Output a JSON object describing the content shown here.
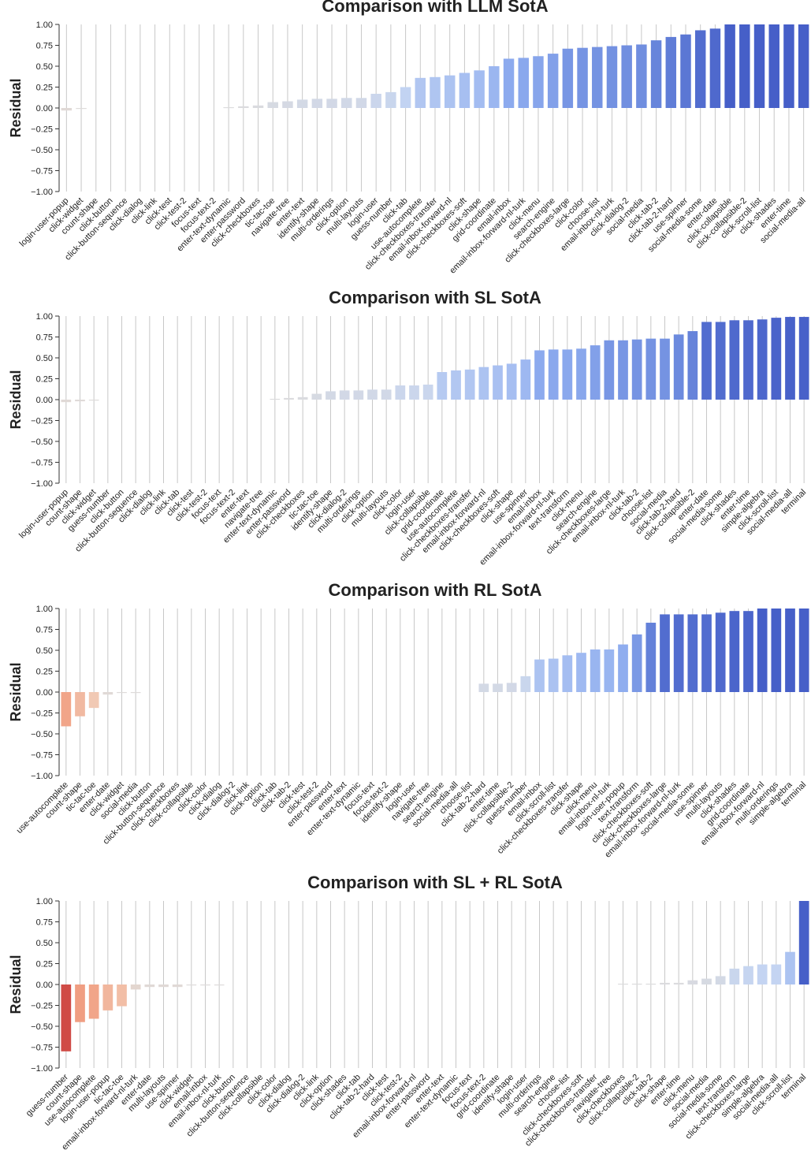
{
  "chart_data": [
    {
      "type": "bar",
      "title": "Comparison with LLM SotA",
      "xlabel": "",
      "ylabel": "Residual",
      "ylim": [
        -1.0,
        1.0
      ],
      "yticks": [
        "1.00",
        "0.75",
        "0.50",
        "0.25",
        "0.00",
        "−0.25",
        "−0.50",
        "−0.75",
        "−1.00"
      ],
      "grid": "vertical",
      "palette": "coolwarm_r",
      "categories": [
        "login-user-popup",
        "click-widget",
        "count-shape",
        "click-button",
        "click-button-sequence",
        "click-dialog",
        "click-link",
        "click-test",
        "click-test-2",
        "focus-text",
        "focus-text-2",
        "enter-text-dynamic",
        "enter-password",
        "click-checkboxes",
        "tic-tac-toe",
        "navigate-tree",
        "enter-text",
        "identify-shape",
        "multi-orderings",
        "click-option",
        "multi-layouts",
        "login-user",
        "guess-number",
        "click-tab",
        "use-autocomplete",
        "click-checkboxes-transfer",
        "email-inbox-forward-nl",
        "click-checkboxes-soft",
        "click-shape",
        "grid-coordinate",
        "email-inbox",
        "email-inbox-forward-nl-turk",
        "click-menu",
        "search-engine",
        "click-checkboxes-large",
        "click-color",
        "choose-list",
        "email-inbox-nl-turk",
        "click-dialog-2",
        "social-media",
        "click-tab-2",
        "click-tab-2-hard",
        "use-spinner",
        "social-media-some",
        "enter-date",
        "click-collapsible",
        "click-collapsible-2",
        "click-scroll-list",
        "click-shades",
        "enter-time",
        "social-media-all"
      ],
      "values": [
        -0.03,
        -0.01,
        0,
        0,
        0,
        0,
        0,
        0,
        0,
        0,
        0,
        0.01,
        0.02,
        0.03,
        0.07,
        0.08,
        0.1,
        0.11,
        0.11,
        0.12,
        0.12,
        0.17,
        0.19,
        0.25,
        0.36,
        0.37,
        0.39,
        0.42,
        0.45,
        0.5,
        0.59,
        0.6,
        0.62,
        0.65,
        0.71,
        0.72,
        0.73,
        0.74,
        0.75,
        0.76,
        0.81,
        0.85,
        0.88,
        0.93,
        0.95,
        1.0,
        1.0,
        1.0,
        1.0,
        1.0,
        1.0
      ]
    },
    {
      "type": "bar",
      "title": "Comparison with SL SotA",
      "xlabel": "",
      "ylabel": "Residual",
      "ylim": [
        -1.0,
        1.0
      ],
      "yticks": [
        "1.00",
        "0.75",
        "0.50",
        "0.25",
        "0.00",
        "−0.25",
        "−0.50",
        "−0.75",
        "−1.00"
      ],
      "grid": "vertical",
      "palette": "coolwarm_r",
      "categories": [
        "login-user-popup",
        "count-shape",
        "click-widget",
        "guess-number",
        "click-button",
        "click-button-sequence",
        "click-dialog",
        "click-link",
        "click-tab",
        "click-test",
        "click-test-2",
        "focus-text",
        "focus-text-2",
        "enter-text",
        "navigate-tree",
        "enter-text-dynamic",
        "enter-password",
        "click-checkboxes",
        "tic-tac-toe",
        "identify-shape",
        "click-dialog-2",
        "multi-orderings",
        "click-option",
        "multi-layouts",
        "click-color",
        "login-user",
        "click-collapsible",
        "grid-coordinate",
        "use-autocomplete",
        "click-checkboxes-transfer",
        "email-inbox-forward-nl",
        "click-checkboxes-soft",
        "click-shape",
        "use-spinner",
        "email-inbox",
        "email-inbox-forward-nl-turk",
        "text-transform",
        "click-menu",
        "search-engine",
        "click-checkboxes-large",
        "email-inbox-nl-turk",
        "click-tab-2",
        "choose-list",
        "social-media",
        "click-tab-2-hard",
        "click-collapsible-2",
        "enter-date",
        "social-media-some",
        "click-shades",
        "enter-time",
        "simple-algebra",
        "click-scroll-list",
        "social-media-all",
        "terminal"
      ],
      "values": [
        -0.03,
        -0.02,
        -0.01,
        0,
        0,
        0,
        0,
        0,
        0,
        0,
        0,
        0,
        0,
        0,
        0,
        0.01,
        0.02,
        0.03,
        0.07,
        0.1,
        0.11,
        0.11,
        0.12,
        0.12,
        0.17,
        0.17,
        0.18,
        0.33,
        0.35,
        0.36,
        0.39,
        0.41,
        0.43,
        0.48,
        0.59,
        0.6,
        0.6,
        0.61,
        0.65,
        0.71,
        0.71,
        0.72,
        0.73,
        0.73,
        0.78,
        0.82,
        0.93,
        0.93,
        0.95,
        0.95,
        0.96,
        0.98,
        0.99,
        0.99
      ]
    },
    {
      "type": "bar",
      "title": "Comparison with RL SotA",
      "xlabel": "",
      "ylabel": "Residual",
      "ylim": [
        -1.0,
        1.0
      ],
      "yticks": [
        "1.00",
        "0.75",
        "0.50",
        "0.25",
        "0.00",
        "−0.25",
        "−0.50",
        "−0.75",
        "−1.00"
      ],
      "grid": "vertical",
      "palette": "coolwarm_r",
      "categories": [
        "use-autocomplete",
        "count-shape",
        "tic-tac-toe",
        "enter-date",
        "click-widget",
        "social-media",
        "click-button",
        "click-button-sequence",
        "click-checkboxes",
        "click-collapsible",
        "click-color",
        "click-dialog",
        "click-dialog-2",
        "click-link",
        "click-option",
        "click-tab",
        "click-tab-2",
        "click-test",
        "click-test-2",
        "enter-password",
        "enter-text",
        "enter-text-dynamic",
        "focus-text",
        "focus-text-2",
        "identify-shape",
        "login-user",
        "navigate-tree",
        "search-engine",
        "social-media-all",
        "choose-list",
        "click-tab-2-hard",
        "enter-time",
        "click-collapsible-2",
        "guess-number",
        "email-inbox",
        "click-scroll-list",
        "click-checkboxes-transfer",
        "click-shape",
        "click-menu",
        "email-inbox-nl-turk",
        "login-user-popup",
        "text-transform",
        "click-checkboxes-soft",
        "click-checkboxes-large",
        "email-inbox-forward-nl-turk",
        "social-media-some",
        "use-spinner",
        "multi-layouts",
        "click-shades",
        "grid-coordinate",
        "email-inbox-forward-nl",
        "multi-orderings",
        "simple-algebra",
        "terminal"
      ],
      "values": [
        -0.41,
        -0.29,
        -0.19,
        -0.03,
        -0.01,
        -0.01,
        0,
        0,
        0,
        0,
        0,
        0,
        0,
        0,
        0,
        0,
        0,
        0,
        0,
        0,
        0,
        0,
        0,
        0,
        0,
        0,
        0,
        0,
        0,
        0,
        0.1,
        0.1,
        0.11,
        0.19,
        0.39,
        0.4,
        0.44,
        0.47,
        0.51,
        0.51,
        0.57,
        0.69,
        0.83,
        0.93,
        0.93,
        0.93,
        0.93,
        0.95,
        0.97,
        0.97,
        1.0,
        1.0,
        1.0,
        1.0
      ]
    },
    {
      "type": "bar",
      "title": "Comparison with SL + RL SotA",
      "xlabel": "",
      "ylabel": "Residual",
      "ylim": [
        -1.0,
        1.0
      ],
      "yticks": [
        "1.00",
        "0.75",
        "0.50",
        "0.25",
        "0.00",
        "−0.25",
        "−0.50",
        "−0.75",
        "−1.00"
      ],
      "grid": "vertical",
      "palette": "coolwarm_r",
      "categories": [
        "guess-number",
        "count-shape",
        "use-autocomplete",
        "login-user-popup",
        "tic-tac-toe",
        "email-inbox-forward-nl-turk",
        "enter-date",
        "multi-layouts",
        "use-spinner",
        "click-widget",
        "email-inbox",
        "email-inbox-nl-turk",
        "click-button",
        "click-button-sequence",
        "click-collapsible",
        "click-color",
        "click-dialog",
        "click-dialog-2",
        "click-link",
        "click-option",
        "click-shades",
        "click-tab",
        "click-tab-2-hard",
        "click-test",
        "click-test-2",
        "email-inbox-forward-nl",
        "enter-password",
        "enter-text",
        "enter-text-dynamic",
        "focus-text",
        "focus-text-2",
        "grid-coordinate",
        "identify-shape",
        "login-user",
        "multi-orderings",
        "search-engine",
        "choose-list",
        "click-checkboxes-soft",
        "click-checkboxes-transfer",
        "navigate-tree",
        "click-checkboxes",
        "click-collapsible-2",
        "click-tab-2",
        "click-shape",
        "enter-time",
        "click-menu",
        "social-media",
        "social-media-some",
        "text-transform",
        "click-checkboxes-large",
        "simple-algebra",
        "social-media-all",
        "click-scroll-list",
        "terminal"
      ],
      "values": [
        -0.8,
        -0.45,
        -0.41,
        -0.31,
        -0.26,
        -0.06,
        -0.03,
        -0.03,
        -0.03,
        -0.01,
        -0.01,
        -0.01,
        0,
        0,
        0,
        0,
        0,
        0,
        0,
        0,
        0,
        0,
        0,
        0,
        0,
        0,
        0,
        0,
        0,
        0,
        0,
        0,
        0,
        0,
        0,
        0,
        0,
        0,
        0,
        0,
        0.01,
        0.01,
        0.01,
        0.02,
        0.02,
        0.05,
        0.07,
        0.1,
        0.19,
        0.22,
        0.24,
        0.24,
        0.39,
        1.0
      ]
    }
  ]
}
